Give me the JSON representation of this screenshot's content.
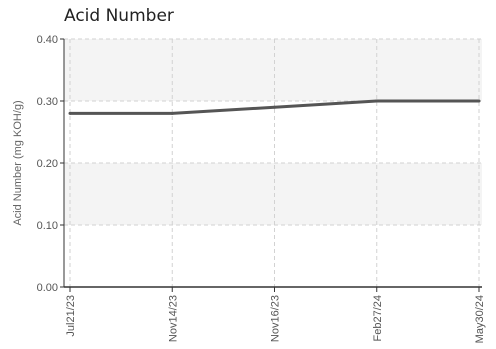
{
  "chart_data": {
    "type": "line",
    "title": "Acid Number",
    "xlabel": "",
    "ylabel": "Acid Number (mg KOH/g)",
    "categories": [
      "Jul21/23",
      "Nov14/23",
      "Nov16/23",
      "Feb27/24",
      "May30/24"
    ],
    "series": [
      {
        "values": [
          0.28,
          0.28,
          0.29,
          0.3,
          0.3
        ]
      }
    ],
    "ylim": [
      0,
      0.4
    ],
    "yticks": [
      "0.00",
      "0.10",
      "0.20",
      "0.30",
      "0.40"
    ],
    "grid": true,
    "legend": "none",
    "colors": {
      "line": "#555555",
      "band": "#f4f4f4",
      "grid": "#d2d2d2",
      "axis": "#333333"
    }
  }
}
